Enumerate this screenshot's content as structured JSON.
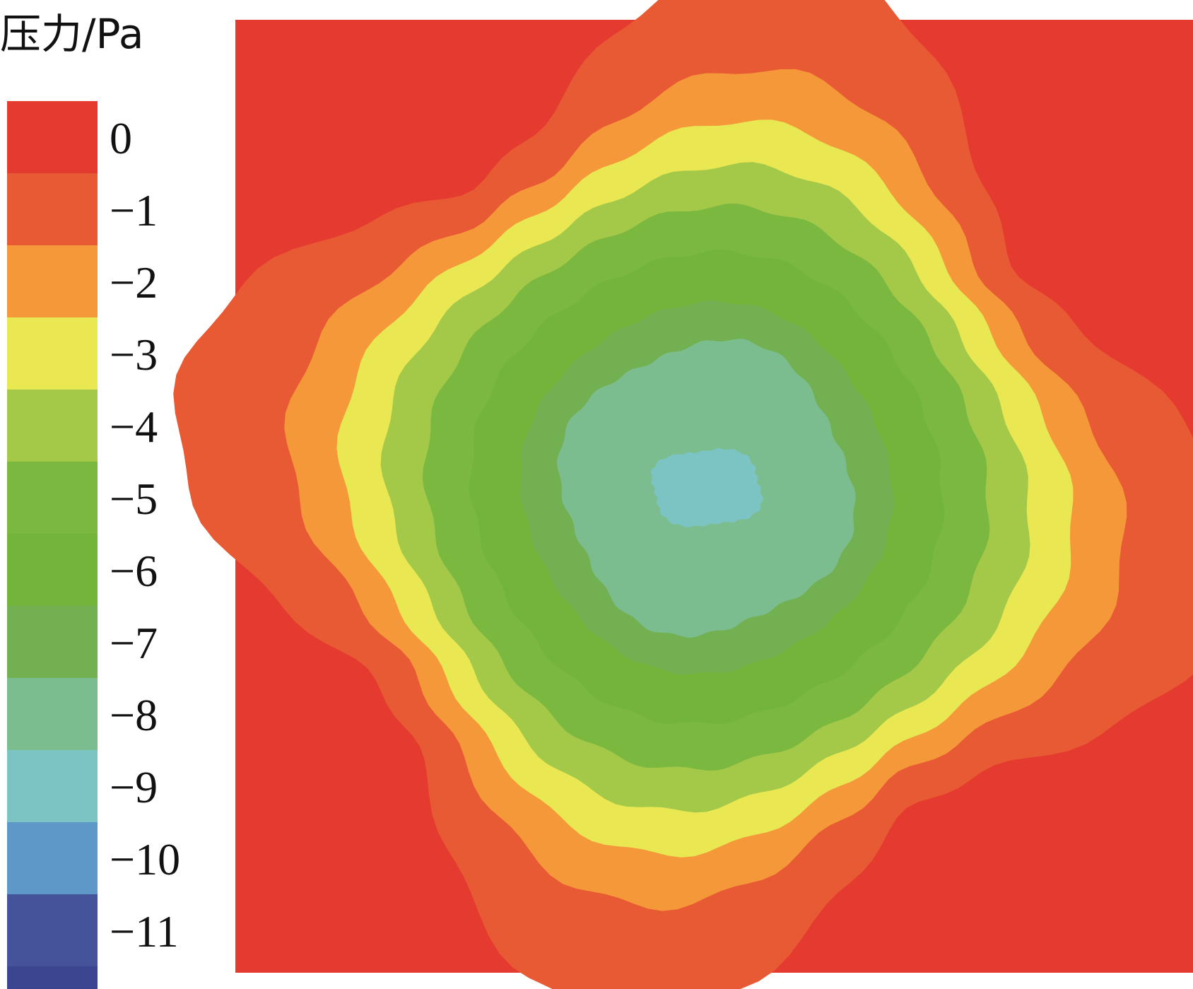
{
  "chart_data": {
    "type": "heatmap",
    "title": "",
    "colorbar": {
      "title": "压力/Pa",
      "tick_labels": [
        "0",
        "−1",
        "−2",
        "−3",
        "−4",
        "−5",
        "−6",
        "−7",
        "−8",
        "−9",
        "−10",
        "−11"
      ],
      "levels": [
        0,
        -1,
        -2,
        -3,
        -4,
        -5,
        -6,
        -7,
        -8,
        -9,
        -10,
        -11
      ],
      "band_colors": [
        "#e53a30",
        "#e85a33",
        "#f4983a",
        "#e9e752",
        "#a4c847",
        "#7bb83f",
        "#73b43b",
        "#72b052",
        "#7bbd8f",
        "#7cc3c3",
        "#5e98c8",
        "#45539a",
        "#3c4590"
      ]
    },
    "field": {
      "description": "pressure contour field",
      "background_level": 0,
      "min_level": -9,
      "contour_levels": [
        -1,
        -2,
        -3,
        -4,
        -5,
        -6,
        -7,
        -8,
        -9
      ]
    }
  }
}
